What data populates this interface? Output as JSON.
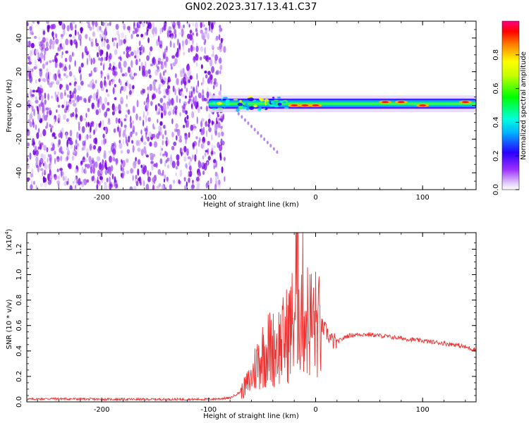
{
  "title": "GN02.2023.317.13.41.C37",
  "chart_data": [
    {
      "type": "heatmap",
      "title": "",
      "xlabel": "Height of straight line (km)",
      "ylabel": "Frequency (Hz)",
      "xlim": [
        -270,
        150
      ],
      "ylim": [
        -50,
        50
      ],
      "xticks": [
        -200,
        -100,
        0,
        100
      ],
      "yticks": [
        -40,
        -20,
        0,
        20,
        40
      ],
      "colorbar": {
        "label": "Normalized spectral amplitude",
        "range": [
          0,
          1
        ],
        "ticks": [
          "0.0",
          "0.2",
          "0.4",
          "0.6",
          "0.8"
        ]
      },
      "features": {
        "noise_region_x": [
          -270,
          -85
        ],
        "signal_band_x": [
          -100,
          150
        ],
        "signal_band_center_hz": 1,
        "peak_points": [
          {
            "x": -20,
            "y": 0
          },
          {
            "x": -10,
            "y": 0
          },
          {
            "x": 0,
            "y": 0
          },
          {
            "x": 65,
            "y": 2
          },
          {
            "x": 80,
            "y": 2
          },
          {
            "x": 100,
            "y": 0
          },
          {
            "x": 140,
            "y": 2
          }
        ]
      }
    },
    {
      "type": "line",
      "title": "",
      "xlabel": "Height of straight line (km)",
      "ylabel": "SNR (10 * v/v)",
      "y_scale_label": "(x10",
      "y_scale_exp": "4",
      "xlim": [
        -270,
        150
      ],
      "ylim": [
        0,
        1.33
      ],
      "xticks": [
        -200,
        -100,
        0,
        100
      ],
      "yticks": [
        "0.0",
        "0.2",
        "0.4",
        "0.6",
        "0.8",
        "1.0",
        "1.2"
      ],
      "color": "#ee3333",
      "series": [
        {
          "x": [
            -270,
            -250,
            -200,
            -150,
            -100,
            -80,
            -70,
            -60,
            -55,
            -50,
            -45,
            -40,
            -35,
            -30,
            -25,
            -20,
            -17,
            -15,
            -12,
            -10,
            -5,
            0,
            5,
            10,
            15,
            20,
            30,
            40,
            50,
            60,
            70,
            80,
            90,
            100,
            110,
            120,
            130,
            140,
            150
          ],
          "values": [
            0.02,
            0.025,
            0.02,
            0.02,
            0.02,
            0.03,
            0.08,
            0.2,
            0.33,
            0.4,
            0.45,
            0.45,
            0.48,
            0.52,
            0.6,
            0.7,
            1.3,
            0.75,
            0.85,
            0.72,
            0.68,
            0.66,
            0.6,
            0.55,
            0.48,
            0.47,
            0.52,
            0.53,
            0.53,
            0.52,
            0.51,
            0.5,
            0.49,
            0.48,
            0.47,
            0.46,
            0.45,
            0.43,
            0.41
          ]
        }
      ]
    }
  ]
}
